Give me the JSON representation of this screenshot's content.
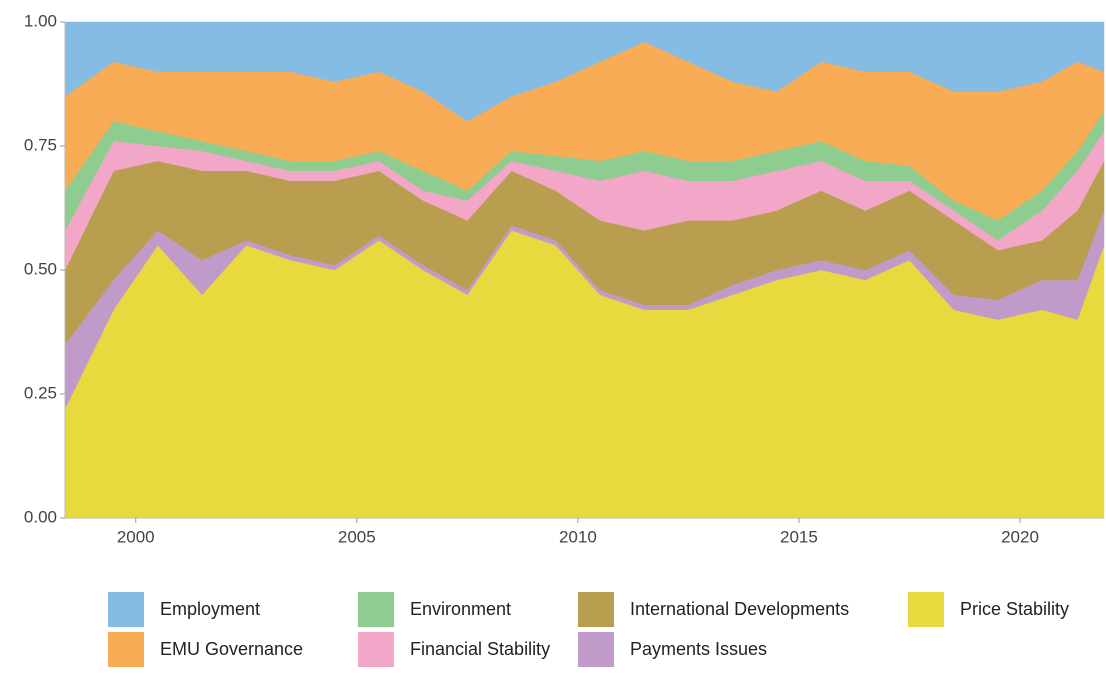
{
  "chart_data": {
    "type": "stacked_area",
    "x": [
      1998.4,
      1999.5,
      2000.5,
      2001.5,
      2002.5,
      2003.5,
      2004.5,
      2005.5,
      2006.5,
      2007.5,
      2008.5,
      2009.5,
      2010.5,
      2011.5,
      2012.5,
      2013.5,
      2014.5,
      2015.5,
      2016.5,
      2017.5,
      2018.5,
      2019.5,
      2020.5,
      2021.3,
      2021.9
    ],
    "series": [
      {
        "name": "Price Stability",
        "color": "#e8d93f",
        "values": [
          0.22,
          0.42,
          0.55,
          0.45,
          0.55,
          0.52,
          0.5,
          0.56,
          0.5,
          0.45,
          0.58,
          0.55,
          0.45,
          0.42,
          0.42,
          0.45,
          0.48,
          0.5,
          0.48,
          0.52,
          0.42,
          0.4,
          0.42,
          0.4,
          0.55
        ]
      },
      {
        "name": "Payments Issues",
        "color": "#c09bc9",
        "values": [
          0.13,
          0.06,
          0.03,
          0.07,
          0.01,
          0.01,
          0.01,
          0.01,
          0.01,
          0.01,
          0.01,
          0.01,
          0.01,
          0.01,
          0.01,
          0.02,
          0.02,
          0.02,
          0.02,
          0.02,
          0.03,
          0.04,
          0.06,
          0.08,
          0.07
        ]
      },
      {
        "name": "International Developments",
        "color": "#b89e4e",
        "values": [
          0.15,
          0.22,
          0.14,
          0.18,
          0.14,
          0.15,
          0.17,
          0.13,
          0.13,
          0.14,
          0.11,
          0.1,
          0.14,
          0.15,
          0.17,
          0.13,
          0.12,
          0.14,
          0.12,
          0.12,
          0.15,
          0.1,
          0.08,
          0.14,
          0.1
        ]
      },
      {
        "name": "Financial Stability",
        "color": "#f2a7c8",
        "values": [
          0.08,
          0.06,
          0.03,
          0.04,
          0.02,
          0.02,
          0.02,
          0.02,
          0.02,
          0.04,
          0.02,
          0.04,
          0.08,
          0.12,
          0.08,
          0.08,
          0.08,
          0.06,
          0.06,
          0.02,
          0.02,
          0.02,
          0.06,
          0.08,
          0.06
        ]
      },
      {
        "name": "Environment",
        "color": "#8fcc8f",
        "values": [
          0.08,
          0.04,
          0.03,
          0.02,
          0.02,
          0.02,
          0.02,
          0.02,
          0.04,
          0.02,
          0.02,
          0.03,
          0.04,
          0.04,
          0.04,
          0.04,
          0.04,
          0.04,
          0.04,
          0.03,
          0.02,
          0.04,
          0.04,
          0.04,
          0.04
        ]
      },
      {
        "name": "EMU Governance",
        "color": "#f7ac55",
        "values": [
          0.19,
          0.12,
          0.12,
          0.14,
          0.16,
          0.18,
          0.16,
          0.16,
          0.16,
          0.14,
          0.11,
          0.15,
          0.2,
          0.22,
          0.2,
          0.16,
          0.12,
          0.16,
          0.18,
          0.19,
          0.22,
          0.26,
          0.22,
          0.18,
          0.08
        ]
      },
      {
        "name": "Employment",
        "color": "#85bce4",
        "values": [
          0.15,
          0.08,
          0.1,
          0.1,
          0.1,
          0.1,
          0.12,
          0.1,
          0.14,
          0.2,
          0.15,
          0.12,
          0.08,
          0.04,
          0.08,
          0.12,
          0.14,
          0.08,
          0.1,
          0.1,
          0.14,
          0.14,
          0.12,
          0.08,
          0.1
        ]
      }
    ],
    "xlim": [
      1998.4,
      2021.9
    ],
    "xticks": [
      2000,
      2005,
      2010,
      2015,
      2020
    ],
    "ylim": [
      0,
      1
    ],
    "yticks": [
      {
        "value": 0,
        "label": "0.00"
      },
      {
        "value": 0.25,
        "label": "0.25"
      },
      {
        "value": 0.5,
        "label": "0.50"
      },
      {
        "value": 0.75,
        "label": "0.75"
      },
      {
        "value": 1,
        "label": "1.00"
      }
    ],
    "legend_order": [
      6,
      5,
      4,
      3,
      2,
      1,
      0
    ],
    "legend_position": "bottom"
  }
}
